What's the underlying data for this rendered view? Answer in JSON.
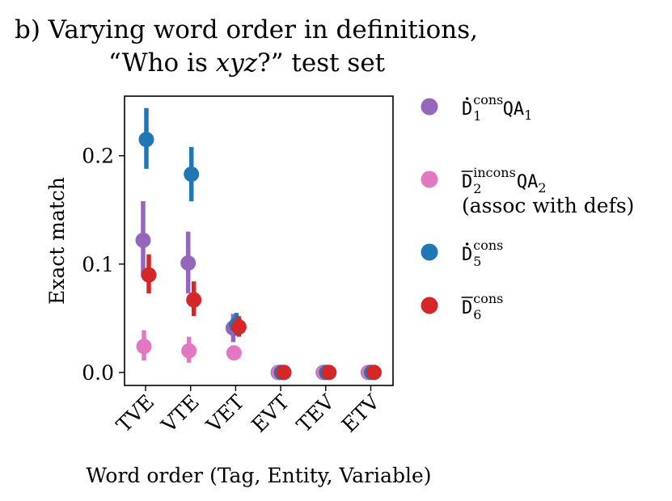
{
  "chart_data": {
    "type": "scatter",
    "title_line1": "b) Varying word order in definitions,",
    "title_line2_before": "“Who is ",
    "title_line2_italic": "xyz",
    "title_line2_after": "?” test set",
    "xlabel": "Word order (Tag, Entity, Variable)",
    "ylabel": "Exact match",
    "categories": [
      "TVE",
      "VTE",
      "VET",
      "EVT",
      "TEV",
      "ETV"
    ],
    "ylim": [
      -0.012,
      0.255
    ],
    "yticks": [
      {
        "value": 0.0,
        "label": "0.0"
      },
      {
        "value": 0.1,
        "label": "0.1"
      },
      {
        "value": 0.2,
        "label": "0.2"
      }
    ],
    "grid": false,
    "legend_position": "right",
    "series": [
      {
        "color": "#9467bd",
        "legend": {
          "base": "D",
          "accent": "dot",
          "sup": "cons",
          "sub": "1",
          "tail": "QA",
          "tail_sub": "1",
          "note": ""
        },
        "values": [
          0.122,
          0.101,
          0.041,
          0.0,
          0.0,
          0.0
        ],
        "err_low": [
          0.088,
          0.073,
          0.028,
          0.0,
          0.0,
          0.0
        ],
        "err_high": [
          0.158,
          0.13,
          0.054,
          0.0,
          0.0,
          0.0
        ]
      },
      {
        "color": "#e377c2",
        "legend": {
          "base": "D",
          "accent": "bar",
          "sup": "incons",
          "sub": "2",
          "tail": "QA",
          "tail_sub": "2",
          "note": "(assoc with defs)"
        },
        "values": [
          0.024,
          0.02,
          0.018,
          0.0,
          0.0,
          0.0
        ],
        "err_low": [
          0.011,
          0.009,
          0.018,
          0.0,
          0.0,
          0.0
        ],
        "err_high": [
          0.039,
          0.033,
          0.018,
          0.0,
          0.0,
          0.0
        ]
      },
      {
        "color": "#1f77b4",
        "legend": {
          "base": "D",
          "accent": "dot",
          "sup": "cons",
          "sub": "5",
          "tail": "",
          "tail_sub": "",
          "note": ""
        },
        "values": [
          0.215,
          0.183,
          0.044,
          0.0,
          0.0,
          0.0
        ],
        "err_low": [
          0.188,
          0.158,
          0.034,
          0.0,
          0.0,
          0.0
        ],
        "err_high": [
          0.244,
          0.208,
          0.055,
          0.0,
          0.0,
          0.0
        ]
      },
      {
        "color": "#d62728",
        "legend": {
          "base": "D",
          "accent": "bar",
          "sup": "cons",
          "sub": "6",
          "tail": "",
          "tail_sub": "",
          "note": ""
        },
        "values": [
          0.09,
          0.067,
          0.042,
          0.0,
          0.0,
          0.0
        ],
        "err_low": [
          0.073,
          0.052,
          0.033,
          0.0,
          0.0,
          0.0
        ],
        "err_high": [
          0.109,
          0.084,
          0.052,
          0.0,
          0.0,
          0.0
        ]
      }
    ]
  }
}
